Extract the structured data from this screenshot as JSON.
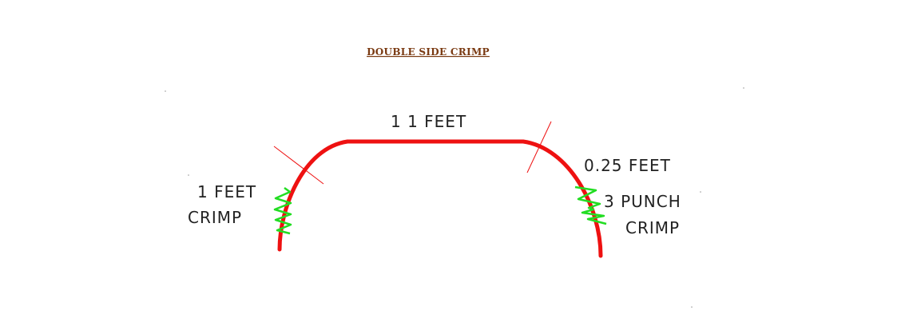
{
  "title": "DOUBLE SIDE CRIMP",
  "labels": {
    "top_length": "1 1 FEET",
    "bend_radius": "0.25 FEET",
    "left_crimp_line1": "1 FEET",
    "left_crimp_line2": "CRIMP",
    "right_crimp_line1": "3 PUNCH",
    "right_crimp_line2": "CRIMP"
  },
  "colors": {
    "profile": "#ee1111",
    "tangent_marks": "#ee1111",
    "crimp": "#22dd22",
    "title": "#7a3a12",
    "text": "#222222",
    "background": "#ffffff"
  }
}
